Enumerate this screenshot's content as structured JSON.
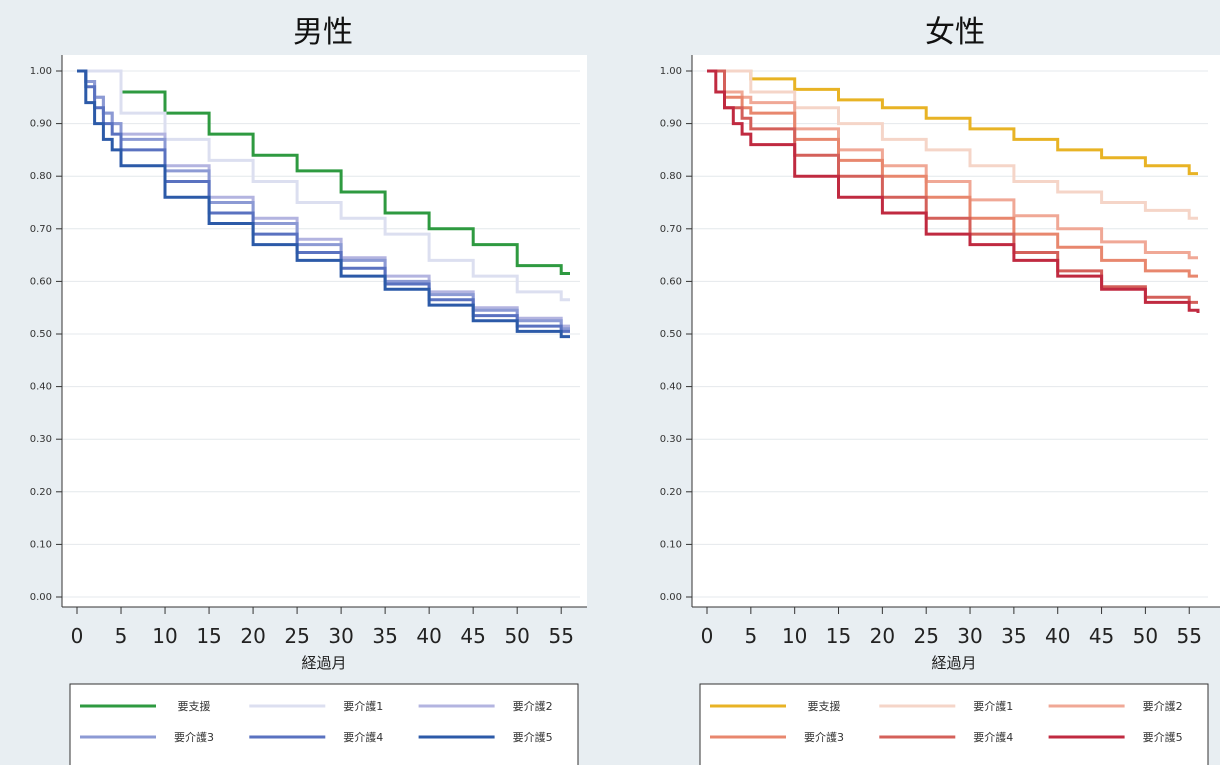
{
  "chart_data": [
    {
      "type": "line",
      "title": "男性",
      "xlabel": "経過月",
      "ylabel": "",
      "xlim": [
        0,
        56
      ],
      "ylim": [
        0,
        1
      ],
      "xticks": [
        "0",
        "5",
        "10",
        "15",
        "20",
        "25",
        "30",
        "35",
        "40",
        "45",
        "50",
        "55"
      ],
      "yticks": [
        "0.00",
        "0.10",
        "0.20",
        "0.30",
        "0.40",
        "0.50",
        "0.60",
        "0.70",
        "0.80",
        "0.90",
        "1.00"
      ],
      "grid": true,
      "legend_position": "bottom",
      "series": [
        {
          "name": "要支援",
          "color": "#2e9a40",
          "x": [
            0,
            5,
            10,
            15,
            20,
            25,
            30,
            35,
            40,
            45,
            50,
            55,
            56
          ],
          "y": [
            1.0,
            0.96,
            0.92,
            0.88,
            0.84,
            0.81,
            0.77,
            0.73,
            0.7,
            0.67,
            0.63,
            0.615,
            0.615
          ]
        },
        {
          "name": "要介護1",
          "color": "#dcdff0",
          "x": [
            0,
            5,
            10,
            15,
            20,
            25,
            30,
            35,
            40,
            45,
            50,
            55,
            56
          ],
          "y": [
            1.0,
            0.92,
            0.87,
            0.83,
            0.79,
            0.75,
            0.72,
            0.69,
            0.64,
            0.61,
            0.58,
            0.565,
            0.565
          ]
        },
        {
          "name": "要介護2",
          "color": "#b3b4e0",
          "x": [
            0,
            1,
            2,
            3,
            4,
            5,
            10,
            15,
            20,
            25,
            30,
            35,
            40,
            45,
            50,
            55,
            56
          ],
          "y": [
            1.0,
            0.98,
            0.95,
            0.92,
            0.9,
            0.88,
            0.82,
            0.76,
            0.72,
            0.68,
            0.645,
            0.61,
            0.58,
            0.55,
            0.53,
            0.515,
            0.515
          ]
        },
        {
          "name": "要介護3",
          "color": "#8c9ad4",
          "x": [
            0,
            1,
            2,
            3,
            4,
            5,
            10,
            15,
            20,
            25,
            30,
            35,
            40,
            45,
            50,
            55,
            56
          ],
          "y": [
            1.0,
            0.98,
            0.95,
            0.92,
            0.9,
            0.87,
            0.81,
            0.75,
            0.71,
            0.67,
            0.64,
            0.6,
            0.575,
            0.545,
            0.525,
            0.51,
            0.51
          ]
        },
        {
          "name": "要介護4",
          "color": "#5a72c0",
          "x": [
            0,
            1,
            2,
            3,
            4,
            5,
            10,
            15,
            20,
            25,
            30,
            35,
            40,
            45,
            50,
            55,
            56
          ],
          "y": [
            1.0,
            0.97,
            0.93,
            0.9,
            0.88,
            0.85,
            0.79,
            0.73,
            0.69,
            0.655,
            0.625,
            0.595,
            0.565,
            0.535,
            0.515,
            0.505,
            0.505
          ]
        },
        {
          "name": "要介護5",
          "color": "#2c5aa8",
          "x": [
            0,
            1,
            2,
            3,
            4,
            5,
            10,
            15,
            20,
            25,
            30,
            35,
            40,
            45,
            50,
            55,
            56
          ],
          "y": [
            1.0,
            0.94,
            0.9,
            0.87,
            0.85,
            0.82,
            0.76,
            0.71,
            0.67,
            0.64,
            0.61,
            0.585,
            0.555,
            0.525,
            0.505,
            0.495,
            0.495
          ]
        }
      ]
    },
    {
      "type": "line",
      "title": "女性",
      "xlabel": "経過月",
      "ylabel": "",
      "xlim": [
        0,
        56
      ],
      "ylim": [
        0,
        1
      ],
      "xticks": [
        "0",
        "5",
        "10",
        "15",
        "20",
        "25",
        "30",
        "35",
        "40",
        "45",
        "50",
        "55"
      ],
      "yticks": [
        "0.00",
        "0.10",
        "0.20",
        "0.30",
        "0.40",
        "0.50",
        "0.60",
        "0.70",
        "0.80",
        "0.90",
        "1.00"
      ],
      "grid": true,
      "legend_position": "bottom",
      "series": [
        {
          "name": "要支援",
          "color": "#e8b325",
          "x": [
            0,
            5,
            10,
            15,
            20,
            25,
            30,
            35,
            40,
            45,
            50,
            55,
            56
          ],
          "y": [
            1.0,
            0.985,
            0.965,
            0.945,
            0.93,
            0.91,
            0.89,
            0.87,
            0.85,
            0.835,
            0.82,
            0.805,
            0.805
          ]
        },
        {
          "name": "要介護1",
          "color": "#f5d5c8",
          "x": [
            0,
            5,
            10,
            15,
            20,
            25,
            30,
            35,
            40,
            45,
            50,
            55,
            56
          ],
          "y": [
            1.0,
            0.96,
            0.93,
            0.9,
            0.87,
            0.85,
            0.82,
            0.79,
            0.77,
            0.75,
            0.735,
            0.72,
            0.72
          ]
        },
        {
          "name": "要介護2",
          "color": "#f0a896",
          "x": [
            0,
            2,
            4,
            5,
            10,
            15,
            20,
            25,
            30,
            35,
            40,
            45,
            50,
            55,
            56
          ],
          "y": [
            1.0,
            0.96,
            0.95,
            0.94,
            0.89,
            0.85,
            0.82,
            0.79,
            0.755,
            0.725,
            0.7,
            0.675,
            0.655,
            0.645,
            0.645
          ]
        },
        {
          "name": "要介護3",
          "color": "#e8876e",
          "x": [
            0,
            2,
            4,
            5,
            10,
            15,
            20,
            25,
            30,
            35,
            40,
            45,
            50,
            55,
            56
          ],
          "y": [
            1.0,
            0.95,
            0.93,
            0.92,
            0.87,
            0.83,
            0.8,
            0.76,
            0.72,
            0.69,
            0.665,
            0.64,
            0.62,
            0.61,
            0.61
          ]
        },
        {
          "name": "要介護4",
          "color": "#d4605a",
          "x": [
            0,
            2,
            4,
            5,
            10,
            15,
            20,
            25,
            30,
            35,
            40,
            45,
            50,
            55,
            56
          ],
          "y": [
            1.0,
            0.93,
            0.91,
            0.89,
            0.84,
            0.8,
            0.76,
            0.72,
            0.69,
            0.655,
            0.62,
            0.59,
            0.57,
            0.56,
            0.56
          ]
        },
        {
          "name": "要介護5",
          "color": "#c02a40",
          "x": [
            0,
            1,
            2,
            3,
            4,
            5,
            10,
            15,
            20,
            25,
            30,
            35,
            40,
            45,
            50,
            55,
            56
          ],
          "y": [
            1.0,
            0.96,
            0.93,
            0.9,
            0.88,
            0.86,
            0.8,
            0.76,
            0.73,
            0.69,
            0.67,
            0.64,
            0.61,
            0.585,
            0.56,
            0.545,
            0.54
          ]
        }
      ]
    }
  ]
}
